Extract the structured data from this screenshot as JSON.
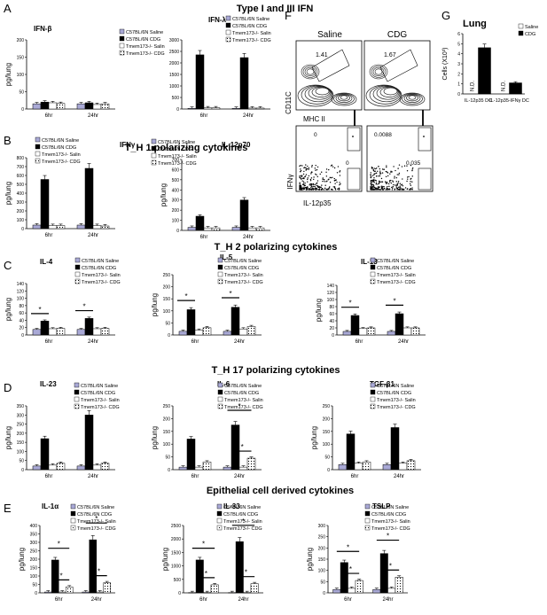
{
  "section_titles": {
    "A": "Type I and III IFN",
    "B": "T_H 1 polarizing cytokines",
    "C": "T_H 2 polarizing cytokines",
    "D": "T_H 17 polarizing cytokines",
    "E": "Epithelial cell derived cytokines"
  },
  "panel_letters": [
    "A",
    "B",
    "C",
    "D",
    "E",
    "F",
    "G"
  ],
  "ylabel": "pg/lung",
  "legend": [
    "C57BL/6N Saline",
    "C57BL/6N CDG",
    "Tmem173-/- Salin",
    "Tmem173-/- CDG"
  ],
  "series_colors": [
    "#a9a9d6",
    "#000000",
    "#ffffff",
    "#ffffff"
  ],
  "chart_data": [
    {
      "type": "bar",
      "title": "IFN-β",
      "xlabel": "",
      "ylabel": "pg/lung",
      "categories": [
        "6hr",
        "24hr"
      ],
      "ylim": [
        0,
        200
      ],
      "yticks": [
        0,
        50,
        100,
        150,
        200
      ],
      "series": [
        {
          "name": "C57BL/6N Saline",
          "values": [
            15,
            15
          ]
        },
        {
          "name": "C57BL/6N CDG",
          "values": [
            20,
            18
          ]
        },
        {
          "name": "Tmem173-/- Salin",
          "values": [
            18,
            13
          ]
        },
        {
          "name": "Tmem173-/- CDG",
          "values": [
            16,
            15
          ]
        }
      ],
      "sig": []
    },
    {
      "type": "bar",
      "title": "IFN-λ",
      "xlabel": "",
      "ylabel": "",
      "categories": [
        "6hr",
        "24hr"
      ],
      "ylim": [
        0,
        3000
      ],
      "yticks": [
        0,
        500,
        1000,
        1500,
        2000,
        2500,
        3000
      ],
      "series": [
        {
          "name": "C57BL/6N Saline",
          "values": [
            30,
            30
          ]
        },
        {
          "name": "C57BL/6N CDG",
          "values": [
            2350,
            2230
          ]
        },
        {
          "name": "Tmem173-/- Salin",
          "values": [
            50,
            40
          ]
        },
        {
          "name": "Tmem173-/- CDG",
          "values": [
            50,
            40
          ]
        }
      ],
      "sig": []
    },
    {
      "type": "bar",
      "title": "IFNγ",
      "xlabel": "",
      "ylabel": "pg/lung",
      "categories": [
        "6hr",
        "24hr"
      ],
      "ylim": [
        0,
        800
      ],
      "yticks": [
        0,
        100,
        200,
        300,
        400,
        500,
        600,
        700,
        800
      ],
      "series": [
        {
          "name": "C57BL/6N Saline",
          "values": [
            40,
            40
          ]
        },
        {
          "name": "C57BL/6N CDG",
          "values": [
            555,
            680
          ]
        },
        {
          "name": "Tmem173-/- Salin",
          "values": [
            35,
            35
          ]
        },
        {
          "name": "Tmem173-/- CDG",
          "values": [
            35,
            30
          ]
        }
      ],
      "sig": []
    },
    {
      "type": "bar",
      "title": "IL-12p70",
      "xlabel": "",
      "ylabel": "pg/lung",
      "categories": [
        "6hr",
        "24hr"
      ],
      "ylim": [
        0,
        700
      ],
      "yticks": [
        0,
        100,
        200,
        300,
        400,
        500,
        600,
        700
      ],
      "series": [
        {
          "name": "C57BL/6N Saline",
          "values": [
            30,
            30
          ]
        },
        {
          "name": "C57BL/6N CDG",
          "values": [
            140,
            300
          ]
        },
        {
          "name": "Tmem173-/- Salin",
          "values": [
            25,
            25
          ]
        },
        {
          "name": "Tmem173-/- CDG",
          "values": [
            25,
            25
          ]
        }
      ],
      "sig": []
    },
    {
      "type": "bar",
      "title": "IL-4",
      "xlabel": "",
      "ylabel": "pg/lung",
      "categories": [
        "6hr",
        "24hr"
      ],
      "ylim": [
        0,
        140
      ],
      "yticks": [
        0,
        20,
        40,
        60,
        80,
        100,
        120,
        140
      ],
      "series": [
        {
          "name": "C57BL/6N Saline",
          "values": [
            15,
            15
          ]
        },
        {
          "name": "C57BL/6N CDG",
          "values": [
            38,
            45
          ]
        },
        {
          "name": "Tmem173-/- Salin",
          "values": [
            17,
            17
          ]
        },
        {
          "name": "Tmem173-/- CDG",
          "values": [
            18,
            18
          ]
        }
      ],
      "sig": [
        {
          "group": 0,
          "label": "*"
        },
        {
          "group": 1,
          "label": "*"
        }
      ]
    },
    {
      "type": "bar",
      "title": "IL-5",
      "xlabel": "",
      "ylabel": "pg/lung",
      "categories": [
        "6hr",
        "24hr"
      ],
      "ylim": [
        0,
        250
      ],
      "yticks": [
        0,
        50,
        100,
        150,
        200,
        250
      ],
      "series": [
        {
          "name": "C57BL/6N Saline",
          "values": [
            15,
            15
          ]
        },
        {
          "name": "C57BL/6N CDG",
          "values": [
            105,
            115
          ]
        },
        {
          "name": "Tmem173-/- Salin",
          "values": [
            20,
            25
          ]
        },
        {
          "name": "Tmem173-/- CDG",
          "values": [
            30,
            35
          ]
        }
      ],
      "sig": [
        {
          "group": 0,
          "label": "*"
        },
        {
          "group": 1,
          "label": "*"
        }
      ]
    },
    {
      "type": "bar",
      "title": "IL-13",
      "xlabel": "",
      "ylabel": "pg/lung",
      "categories": [
        "6hr",
        "24hr"
      ],
      "ylim": [
        0,
        140
      ],
      "yticks": [
        0,
        20,
        40,
        60,
        80,
        100,
        120,
        140
      ],
      "series": [
        {
          "name": "C57BL/6N Saline",
          "values": [
            10,
            10
          ]
        },
        {
          "name": "C57BL/6N CDG",
          "values": [
            55,
            60
          ]
        },
        {
          "name": "Tmem173-/- Salin",
          "values": [
            18,
            20
          ]
        },
        {
          "name": "Tmem173-/- CDG",
          "values": [
            20,
            20
          ]
        }
      ],
      "sig": [
        {
          "group": 0,
          "label": "*"
        },
        {
          "group": 1,
          "label": "*"
        }
      ]
    },
    {
      "type": "bar",
      "title": "IL-23",
      "xlabel": "",
      "ylabel": "pg/lung",
      "categories": [
        "6hr",
        "24hr"
      ],
      "ylim": [
        0,
        350
      ],
      "yticks": [
        0,
        50,
        100,
        150,
        200,
        250,
        300,
        350
      ],
      "series": [
        {
          "name": "C57BL/6N Saline",
          "values": [
            20,
            20
          ]
        },
        {
          "name": "C57BL/6N CDG",
          "values": [
            170,
            300
          ]
        },
        {
          "name": "Tmem173-/- Salin",
          "values": [
            25,
            25
          ]
        },
        {
          "name": "Tmem173-/- CDG",
          "values": [
            35,
            35
          ]
        }
      ],
      "sig": []
    },
    {
      "type": "bar",
      "title": "IL-6",
      "xlabel": "",
      "ylabel": "pg/lung",
      "categories": [
        "6hr",
        "24hr"
      ],
      "ylim": [
        0,
        250
      ],
      "yticks": [
        0,
        50,
        100,
        150,
        200,
        250
      ],
      "series": [
        {
          "name": "C57BL/6N Saline",
          "values": [
            10,
            10
          ]
        },
        {
          "name": "C57BL/6N CDG",
          "values": [
            120,
            175
          ]
        },
        {
          "name": "Tmem173-/- Salin",
          "values": [
            10,
            10
          ]
        },
        {
          "name": "Tmem173-/- CDG",
          "values": [
            30,
            45
          ]
        }
      ],
      "sig": [
        {
          "group": 1,
          "label": "*"
        },
        {
          "group": 1,
          "label": "*",
          "wide": true
        }
      ]
    },
    {
      "type": "bar",
      "title": "TGF-β1",
      "xlabel": "",
      "ylabel": "pg/lung",
      "categories": [
        "6hr",
        "24hr"
      ],
      "ylim": [
        0,
        250
      ],
      "yticks": [
        0,
        50,
        100,
        150,
        200,
        250
      ],
      "series": [
        {
          "name": "C57BL/6N Saline",
          "values": [
            20,
            20
          ]
        },
        {
          "name": "C57BL/6N CDG",
          "values": [
            140,
            165
          ]
        },
        {
          "name": "Tmem173-/- Salin",
          "values": [
            25,
            25
          ]
        },
        {
          "name": "Tmem173-/- CDG",
          "values": [
            30,
            35
          ]
        }
      ],
      "sig": []
    },
    {
      "type": "bar",
      "title": "IL-1α",
      "xlabel": "",
      "ylabel": "pg/lung",
      "categories": [
        "6hr",
        "24hr"
      ],
      "ylim": [
        0,
        400
      ],
      "yticks": [
        0,
        50,
        100,
        150,
        200,
        250,
        300,
        350,
        400
      ],
      "series": [
        {
          "name": "C57BL/6N Saline",
          "values": [
            5,
            5
          ]
        },
        {
          "name": "C57BL/6N CDG",
          "values": [
            195,
            315
          ]
        },
        {
          "name": "Tmem173-/- Salin",
          "values": [
            5,
            5
          ]
        },
        {
          "name": "Tmem173-/- CDG",
          "values": [
            35,
            60
          ]
        }
      ],
      "sig": [
        {
          "group": 0,
          "label": "*"
        },
        {
          "group": 0,
          "label": "*",
          "wide": true
        },
        {
          "group": 1,
          "label": "*"
        },
        {
          "group": 1,
          "label": "*",
          "wide": true
        }
      ]
    },
    {
      "type": "bar",
      "title": "IL-33",
      "xlabel": "",
      "ylabel": "pg/lung",
      "categories": [
        "6hr",
        "24hr"
      ],
      "ylim": [
        0,
        2500
      ],
      "yticks": [
        0,
        500,
        1000,
        1500,
        2000,
        2500
      ],
      "series": [
        {
          "name": "C57BL/6N Saline",
          "values": [
            10,
            10
          ]
        },
        {
          "name": "C57BL/6N CDG",
          "values": [
            1220,
            1900
          ]
        },
        {
          "name": "Tmem173-/- Salin",
          "values": [
            10,
            10
          ]
        },
        {
          "name": "Tmem173-/- CDG",
          "values": [
            300,
            340
          ]
        }
      ],
      "sig": [
        {
          "group": 0,
          "label": "*"
        },
        {
          "group": 0,
          "label": "*",
          "wide": true
        },
        {
          "group": 1,
          "label": "*"
        },
        {
          "group": 1,
          "label": "*",
          "wide": true
        }
      ]
    },
    {
      "type": "bar",
      "title": "TSLP",
      "xlabel": "",
      "ylabel": "pg/lung",
      "categories": [
        "6hr",
        "24hr"
      ],
      "ylim": [
        0,
        300
      ],
      "yticks": [
        0,
        50,
        100,
        150,
        200,
        250,
        300
      ],
      "series": [
        {
          "name": "C57BL/6N Saline",
          "values": [
            15,
            15
          ]
        },
        {
          "name": "C57BL/6N CDG",
          "values": [
            135,
            175
          ]
        },
        {
          "name": "Tmem173-/- Salin",
          "values": [
            20,
            20
          ]
        },
        {
          "name": "Tmem173-/- CDG",
          "values": [
            55,
            70
          ]
        }
      ],
      "sig": [
        {
          "group": 0,
          "label": "*"
        },
        {
          "group": 0,
          "label": "*",
          "wide": true
        },
        {
          "group": 1,
          "label": "*"
        },
        {
          "group": 1,
          "label": "*",
          "wide": true
        }
      ]
    },
    {
      "type": "bar",
      "title": "Lung",
      "xlabel": "",
      "ylabel": "Cells (X10³)",
      "categories": [
        "IL-12p35 DC",
        "IL-12p35-IFNγ DC"
      ],
      "ylim": [
        0,
        6
      ],
      "yticks": [
        0,
        1,
        2,
        3,
        4,
        5,
        6
      ],
      "series": [
        {
          "name": "Saline",
          "values": [
            0,
            0
          ],
          "na": [
            "N.D.",
            "N.D."
          ]
        },
        {
          "name": "CDG",
          "values": [
            4.6,
            1.1
          ]
        }
      ],
      "sig": []
    }
  ],
  "flow": {
    "headers": [
      "Saline",
      "CDG"
    ],
    "top_values": [
      "1.41",
      "1.67"
    ],
    "bottom_values_left": [
      "0",
      "0"
    ],
    "bottom_values_right": [
      "0.0088",
      "0.035"
    ],
    "top_xlabel": "MHC II",
    "top_ylabel": "CD11C",
    "bottom_xlabel": "IL-12p35",
    "bottom_ylabel": "IFNγ"
  }
}
